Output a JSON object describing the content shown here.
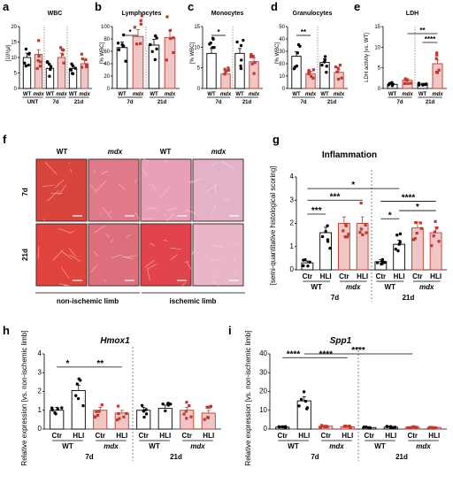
{
  "colors": {
    "wt": "#000000",
    "mdx": "#c0392b",
    "mdx_light": "#f1c6c6",
    "wt_hli": "#cfcfcf",
    "tissue": "#d9534f"
  },
  "panel_a": {
    "label": "a",
    "title": "WBC",
    "ylabel": "[10³/µl]",
    "ticks": [
      "0",
      "5",
      "10",
      "15",
      "20"
    ],
    "ylim": [
      0,
      20
    ],
    "cats": [
      "WT",
      "mdx",
      "WT",
      "mdx",
      "WT",
      "mdx"
    ],
    "groups": [
      "UNT",
      "7d",
      "21d"
    ],
    "bars": [
      10,
      11,
      6.5,
      10,
      6.5,
      8
    ],
    "sig": [],
    "sig_label": ""
  },
  "panel_b": {
    "label": "b",
    "title": "Lymphocytes",
    "ylabel": "[% WBC]",
    "ticks": [
      "0",
      "20",
      "40",
      "60",
      "80",
      "100"
    ],
    "ylim": [
      0,
      100
    ],
    "cats": [
      "WT",
      "mdx",
      "WT",
      "mdx"
    ],
    "groups": [
      "7d",
      "21d"
    ],
    "bars": [
      66,
      84,
      70,
      82
    ],
    "sig_label": "*"
  },
  "panel_c": {
    "label": "c",
    "title": "Monocytes",
    "ylabel": "[% WBC]",
    "ticks": [
      "0",
      "5",
      "10",
      "15"
    ],
    "ylim": [
      0,
      15
    ],
    "cats": [
      "WT",
      "mdx",
      "WT",
      "mdx"
    ],
    "groups": [
      "7d",
      "21d"
    ],
    "bars": [
      8.5,
      3.5,
      8.5,
      6.5
    ],
    "sig_label": "*"
  },
  "panel_d": {
    "label": "d",
    "title": "Granulocytes",
    "ylabel": "[% WBC]",
    "ticks": [
      "0",
      "10",
      "20",
      "30",
      "40",
      "50"
    ],
    "ylim": [
      0,
      50
    ],
    "cats": [
      "WT",
      "mdx",
      "WT",
      "mdx"
    ],
    "groups": [
      "7d",
      "21d"
    ],
    "bars": [
      26,
      12,
      21,
      13
    ],
    "sig_label": "**"
  },
  "panel_e": {
    "label": "e",
    "title": "LDH",
    "ylabel": "LDH activity [vs. WT]",
    "ticks": [
      "0",
      "5",
      "10",
      "15"
    ],
    "ylim": [
      0,
      15
    ],
    "cats": [
      "WT",
      "mdx",
      "WT",
      "mdx"
    ],
    "groups": [
      "7d",
      "21d"
    ],
    "bars": [
      1,
      2,
      1,
      6
    ],
    "sig_labels": [
      "**",
      "****"
    ]
  },
  "panel_f": {
    "label": "f",
    "col_labels": [
      "WT",
      "mdx",
      "WT",
      "mdx"
    ],
    "row_labels": [
      "7d",
      "21d"
    ],
    "bottom_labels": [
      "non-ischemic limb",
      "ischemic limb"
    ]
  },
  "panel_g": {
    "label": "g",
    "title": "Inflammation",
    "ylabel": "[semi-quantitative histological scoring]",
    "ticks": [
      "0",
      "1",
      "2",
      "3",
      "4"
    ],
    "ylim": [
      0,
      4
    ],
    "cats": [
      "Ctr",
      "HLI",
      "Ctr",
      "HLI",
      "Ctr",
      "HLI",
      "Ctr",
      "HLI"
    ],
    "genos": [
      "WT",
      "mdx",
      "WT",
      "mdx"
    ],
    "times": [
      "7d",
      "21d"
    ],
    "bars": [
      0.3,
      1.6,
      2.0,
      2.0,
      0.35,
      1.1,
      1.8,
      1.6
    ],
    "sig_labels": [
      "***",
      "***",
      "*",
      "****",
      "*",
      "*"
    ]
  },
  "panel_h": {
    "label": "h",
    "title": "Hmox1",
    "ylabel": "Relative expression [vs. non-ischemic limb]",
    "ticks": [
      "0",
      "1",
      "2",
      "3",
      "4"
    ],
    "ylim": [
      0,
      4
    ],
    "cats": [
      "Ctr",
      "HLI",
      "Ctr",
      "HLI",
      "Ctr",
      "HLI",
      "Ctr",
      "HLI"
    ],
    "genos": [
      "WT",
      "mdx",
      "WT",
      "mdx"
    ],
    "times": [
      "7d",
      "21d"
    ],
    "bars": [
      1.0,
      2.05,
      1.0,
      0.85,
      1.0,
      1.1,
      1.0,
      0.85
    ],
    "sig_labels": [
      "*",
      "**"
    ]
  },
  "panel_i": {
    "label": "i",
    "title": "Spp1",
    "ylabel": "Relative expression [vs. non-ischemic limb]",
    "ticks": [
      "0",
      "10",
      "20",
      "30",
      "40"
    ],
    "ylim": [
      0,
      40
    ],
    "cats": [
      "Ctr",
      "HLI",
      "Ctr",
      "HLI",
      "Ctr",
      "HLI",
      "Ctr",
      "HLI"
    ],
    "genos": [
      "WT",
      "mdx",
      "WT",
      "mdx"
    ],
    "times": [
      "7d",
      "21d"
    ],
    "bars": [
      1,
      15,
      1.5,
      1.2,
      0.8,
      1,
      1,
      0.8
    ],
    "sig_labels": [
      "****",
      "****",
      "****"
    ]
  },
  "chart_data": [
    {
      "type": "bar",
      "title": "WBC",
      "ylabel": "[10³/µl]",
      "categories": [
        "WT UNT",
        "mdx UNT",
        "WT 7d",
        "mdx 7d",
        "WT 21d",
        "mdx 21d"
      ],
      "values": [
        10,
        11,
        6.5,
        10,
        6.5,
        8
      ],
      "ylim": [
        0,
        20
      ]
    },
    {
      "type": "bar",
      "title": "Lymphocytes",
      "ylabel": "[% WBC]",
      "categories": [
        "WT 7d",
        "mdx 7d",
        "WT 21d",
        "mdx 21d"
      ],
      "values": [
        66,
        84,
        70,
        82
      ],
      "ylim": [
        0,
        100
      ]
    },
    {
      "type": "bar",
      "title": "Monocytes",
      "ylabel": "[% WBC]",
      "categories": [
        "WT 7d",
        "mdx 7d",
        "WT 21d",
        "mdx 21d"
      ],
      "values": [
        8.5,
        3.5,
        8.5,
        6.5
      ],
      "ylim": [
        0,
        15
      ]
    },
    {
      "type": "bar",
      "title": "Granulocytes",
      "ylabel": "[% WBC]",
      "categories": [
        "WT 7d",
        "mdx 7d",
        "WT 21d",
        "mdx 21d"
      ],
      "values": [
        26,
        12,
        21,
        13
      ],
      "ylim": [
        0,
        50
      ]
    },
    {
      "type": "bar",
      "title": "LDH",
      "ylabel": "LDH activity [vs. WT]",
      "categories": [
        "WT 7d",
        "mdx 7d",
        "WT 21d",
        "mdx 21d"
      ],
      "values": [
        1,
        2,
        1,
        6
      ],
      "ylim": [
        0,
        15
      ]
    },
    {
      "type": "bar",
      "title": "Inflammation",
      "ylabel": "[semi-quantitative histological scoring]",
      "categories": [
        "Ctr WT 7d",
        "HLI WT 7d",
        "Ctr mdx 7d",
        "HLI mdx 7d",
        "Ctr WT 21d",
        "HLI WT 21d",
        "Ctr mdx 21d",
        "HLI mdx 21d"
      ],
      "values": [
        0.3,
        1.6,
        2.0,
        2.0,
        0.35,
        1.1,
        1.8,
        1.6
      ],
      "ylim": [
        0,
        4
      ]
    },
    {
      "type": "bar",
      "title": "Hmox1",
      "ylabel": "Relative expression [vs. non-ischemic limb]",
      "categories": [
        "Ctr WT 7d",
        "HLI WT 7d",
        "Ctr mdx 7d",
        "HLI mdx 7d",
        "Ctr WT 21d",
        "HLI WT 21d",
        "Ctr mdx 21d",
        "HLI mdx 21d"
      ],
      "values": [
        1.0,
        2.05,
        1.0,
        0.85,
        1.0,
        1.1,
        1.0,
        0.85
      ],
      "ylim": [
        0,
        4
      ]
    },
    {
      "type": "bar",
      "title": "Spp1",
      "ylabel": "Relative expression [vs. non-ischemic limb]",
      "categories": [
        "Ctr WT 7d",
        "HLI WT 7d",
        "Ctr mdx 7d",
        "HLI mdx 7d",
        "Ctr WT 21d",
        "HLI WT 21d",
        "Ctr mdx 21d",
        "HLI mdx 21d"
      ],
      "values": [
        1,
        15,
        1.5,
        1.2,
        0.8,
        1,
        1,
        0.8
      ],
      "ylim": [
        0,
        40
      ]
    }
  ]
}
